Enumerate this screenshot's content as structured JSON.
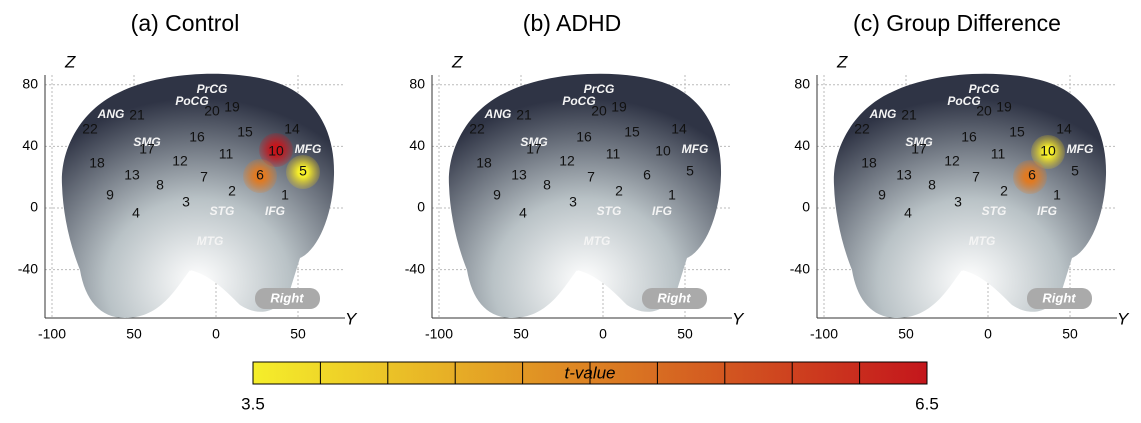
{
  "panels": [
    {
      "title": "(a) Control"
    },
    {
      "title": "(b) ADHD"
    },
    {
      "title": "(c) Group Difference"
    }
  ],
  "axis": {
    "x_label": "Y",
    "y_label": "Z",
    "xtick_labels": [
      "-100",
      "50",
      "0",
      "50"
    ],
    "yticks": [
      80,
      40,
      0,
      -40
    ],
    "ylim": [
      -70,
      90
    ]
  },
  "channels": [
    "1",
    "2",
    "3",
    "4",
    "5",
    "6",
    "7",
    "8",
    "9",
    "10",
    "11",
    "12",
    "13",
    "14",
    "15",
    "16",
    "17",
    "18",
    "19",
    "20",
    "21",
    "22"
  ],
  "regions": [
    "PrCG",
    "PoCG",
    "ANG",
    "SMG",
    "MFG",
    "STG",
    "IFG",
    "MTG"
  ],
  "badge": "Right",
  "colorbar": {
    "title": "t-value",
    "min": 3.5,
    "max": 6.5,
    "colors": [
      "#f5ee2a",
      "#c4161c"
    ]
  }
}
